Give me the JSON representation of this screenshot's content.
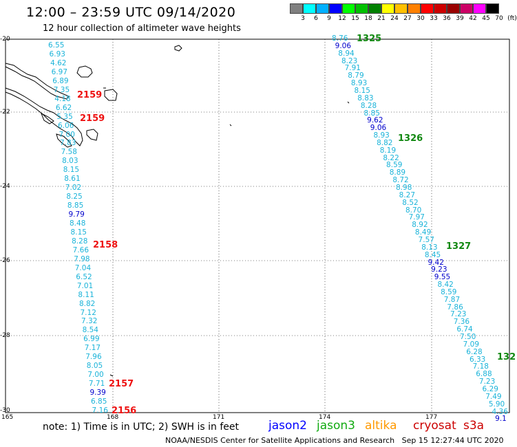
{
  "title": "12:00 – 23:59 UTC 09/14/2020",
  "subtitle": "12 hour collection of altimeter wave heights",
  "colorbar": {
    "labels": [
      "3",
      "6",
      "9",
      "12",
      "15",
      "18",
      "21",
      "24",
      "27",
      "30",
      "33",
      "36",
      "39",
      "42",
      "45",
      "70",
      "(ft)"
    ],
    "colors": [
      "#808080",
      "#00ffff",
      "#00b0ff",
      "#0000ff",
      "#00ff00",
      "#00c000",
      "#008000",
      "#ffff00",
      "#ffc000",
      "#ff8000",
      "#ff0000",
      "#cc0000",
      "#990000",
      "#cc0066",
      "#ff00ff",
      "#000000"
    ]
  },
  "axes": {
    "lat_labels": [
      "-20",
      "-22",
      "-24",
      "-26",
      "-28",
      "-30"
    ],
    "lon_labels": [
      "165",
      "168",
      "171",
      "174",
      "177"
    ]
  },
  "track_left": [
    {
      "v": "6.55",
      "c": "c3"
    },
    {
      "v": "6.93",
      "c": "c3"
    },
    {
      "v": "4.62",
      "c": "c3"
    },
    {
      "v": "6.97",
      "c": "c3"
    },
    {
      "v": "6.89",
      "c": "c3"
    },
    {
      "v": "7.35",
      "c": "c3"
    },
    {
      "v": "4.18",
      "c": "c3"
    },
    {
      "v": "6.62",
      "c": "c3"
    },
    {
      "v": "5.35",
      "c": "c3"
    },
    {
      "v": "6.06",
      "c": "c3"
    },
    {
      "v": "7.00",
      "c": "c3"
    },
    {
      "v": "7.83",
      "c": "c3"
    },
    {
      "v": "7.58",
      "c": "c3"
    },
    {
      "v": "8.03",
      "c": "c3"
    },
    {
      "v": "8.15",
      "c": "c3"
    },
    {
      "v": "8.61",
      "c": "c3"
    },
    {
      "v": "7.02",
      "c": "c3"
    },
    {
      "v": "8.25",
      "c": "c3"
    },
    {
      "v": "8.85",
      "c": "c3"
    },
    {
      "v": "9.79",
      "c": "c2"
    },
    {
      "v": "8.48",
      "c": "c3"
    },
    {
      "v": "8.15",
      "c": "c3"
    },
    {
      "v": "8.28",
      "c": "c3"
    },
    {
      "v": "7.66",
      "c": "c3"
    },
    {
      "v": "7.98",
      "c": "c3"
    },
    {
      "v": "7.04",
      "c": "c3"
    },
    {
      "v": "6.52",
      "c": "c3"
    },
    {
      "v": "7.01",
      "c": "c3"
    },
    {
      "v": "8.11",
      "c": "c3"
    },
    {
      "v": "8.82",
      "c": "c3"
    },
    {
      "v": "7.12",
      "c": "c3"
    },
    {
      "v": "7.32",
      "c": "c3"
    },
    {
      "v": "8.54",
      "c": "c3"
    },
    {
      "v": "6.99",
      "c": "c3"
    },
    {
      "v": "7.17",
      "c": "c3"
    },
    {
      "v": "7.96",
      "c": "c3"
    },
    {
      "v": "8.05",
      "c": "c3"
    },
    {
      "v": "7.00",
      "c": "c3"
    },
    {
      "v": "7.71",
      "c": "c3"
    },
    {
      "v": "9.39",
      "c": "c2"
    },
    {
      "v": "6.85",
      "c": "c3"
    },
    {
      "v": "7.16",
      "c": "c3"
    }
  ],
  "track_right": [
    {
      "v": "8.76",
      "c": "c3"
    },
    {
      "v": "9.06",
      "c": "c2"
    },
    {
      "v": "8.94",
      "c": "c3"
    },
    {
      "v": "8.23",
      "c": "c3"
    },
    {
      "v": "7.91",
      "c": "c3"
    },
    {
      "v": "8.79",
      "c": "c3"
    },
    {
      "v": "8.93",
      "c": "c3"
    },
    {
      "v": "8.15",
      "c": "c3"
    },
    {
      "v": "8.83",
      "c": "c3"
    },
    {
      "v": "8.28",
      "c": "c3"
    },
    {
      "v": "8.85",
      "c": "c3"
    },
    {
      "v": "9.62",
      "c": "c2"
    },
    {
      "v": "9.06",
      "c": "c2"
    },
    {
      "v": "8.93",
      "c": "c3"
    },
    {
      "v": "8.82",
      "c": "c3"
    },
    {
      "v": "8.19",
      "c": "c3"
    },
    {
      "v": "8.22",
      "c": "c3"
    },
    {
      "v": "8.59",
      "c": "c3"
    },
    {
      "v": "8.89",
      "c": "c3"
    },
    {
      "v": "8.72",
      "c": "c3"
    },
    {
      "v": "8.98",
      "c": "c3"
    },
    {
      "v": "8.27",
      "c": "c3"
    },
    {
      "v": "8.52",
      "c": "c3"
    },
    {
      "v": "8.70",
      "c": "c3"
    },
    {
      "v": "7.97",
      "c": "c3"
    },
    {
      "v": "8.92",
      "c": "c3"
    },
    {
      "v": "8.49",
      "c": "c3"
    },
    {
      "v": "7.57",
      "c": "c3"
    },
    {
      "v": "8.13",
      "c": "c3"
    },
    {
      "v": "8.45",
      "c": "c3"
    },
    {
      "v": "9.42",
      "c": "c2"
    },
    {
      "v": "9.23",
      "c": "c2"
    },
    {
      "v": "9.55",
      "c": "c2"
    },
    {
      "v": "8.42",
      "c": "c3"
    },
    {
      "v": "8.59",
      "c": "c3"
    },
    {
      "v": "7.87",
      "c": "c3"
    },
    {
      "v": "7.86",
      "c": "c3"
    },
    {
      "v": "7.23",
      "c": "c3"
    },
    {
      "v": "7.36",
      "c": "c3"
    },
    {
      "v": "6.74",
      "c": "c3"
    },
    {
      "v": "7.50",
      "c": "c3"
    },
    {
      "v": "7.09",
      "c": "c3"
    },
    {
      "v": "6.28",
      "c": "c3"
    },
    {
      "v": "6.33",
      "c": "c3"
    },
    {
      "v": "7.18",
      "c": "c3"
    },
    {
      "v": "6.88",
      "c": "c3"
    },
    {
      "v": "7.23",
      "c": "c3"
    },
    {
      "v": "6.29",
      "c": "c3"
    },
    {
      "v": "7.49",
      "c": "c3"
    },
    {
      "v": "5.90",
      "c": "c3"
    },
    {
      "v": "4.36",
      "c": "c3"
    },
    {
      "v": "9.1",
      "c": "c2"
    }
  ],
  "time_labels": [
    {
      "v": "2159",
      "color": "red"
    },
    {
      "v": "2159",
      "color": "red"
    },
    {
      "v": "2158",
      "color": "red"
    },
    {
      "v": "2157",
      "color": "red"
    },
    {
      "v": "2156",
      "color": "red"
    },
    {
      "v": "1325",
      "color": "green"
    },
    {
      "v": "1326",
      "color": "green"
    },
    {
      "v": "1327",
      "color": "green"
    },
    {
      "v": "132",
      "color": "green"
    }
  ],
  "note": "note: 1) Time is in UTC; 2) SWH is in feet",
  "legend": [
    {
      "name": "jason2",
      "color": "#0000ff"
    },
    {
      "name": "jason3",
      "color": "#11aa11"
    },
    {
      "name": "altika",
      "color": "#ff9900"
    },
    {
      "name": "cryosat",
      "color": "#cc0000"
    },
    {
      "name": "s3a",
      "color": "#cc0000"
    }
  ],
  "credit": "NOAA/NESDIS Center for Satellite Applications and Research",
  "timestamp": "Sep 15 12:27:44 UTC 2020"
}
